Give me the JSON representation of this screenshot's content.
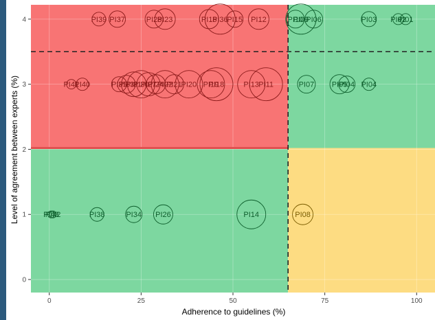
{
  "chart_data": {
    "type": "scatter",
    "title": "",
    "xlabel": "Adherence to guidelines (%)",
    "ylabel": "Level of agreement between experts (%)",
    "xlim": [
      -5,
      105
    ],
    "ylim": [
      -0.2,
      4.22
    ],
    "x_ticks": [
      0,
      25,
      50,
      75,
      100
    ],
    "y_ticks": [
      0,
      1,
      2,
      3,
      4
    ],
    "grid": true,
    "legend": "none",
    "thresholds": {
      "x": 65,
      "y_dashed": 3.5,
      "y_boundary": 2.02
    },
    "quadrant_colors": {
      "red": "#f87474",
      "green": "#7dd7a0",
      "yellow": "#fddc82"
    },
    "label_colors": {
      "red": "#8b1a1a",
      "green": "#0d5e2c",
      "yellow": "#7a5c00"
    },
    "points": [
      {
        "label": "PI39",
        "x": 13.5,
        "y": 4,
        "size": 10
      },
      {
        "label": "PI37",
        "x": 18.5,
        "y": 4,
        "size": 12
      },
      {
        "label": "PI28",
        "x": 28.5,
        "y": 4,
        "size": 13
      },
      {
        "label": "PI23",
        "x": 31.5,
        "y": 4,
        "size": 15
      },
      {
        "label": "PI16",
        "x": 43.5,
        "y": 4,
        "size": 14
      },
      {
        "label": "PI36",
        "x": 46.5,
        "y": 4,
        "size": 22
      },
      {
        "label": "PI15",
        "x": 50.5,
        "y": 4,
        "size": 12
      },
      {
        "label": "PI12",
        "x": 57,
        "y": 4,
        "size": 15
      },
      {
        "label": "PI10",
        "x": 67,
        "y": 4,
        "size": 13
      },
      {
        "label": "PI09",
        "x": 68.5,
        "y": 4,
        "size": 22
      },
      {
        "label": "PI06",
        "x": 72,
        "y": 4,
        "size": 13
      },
      {
        "label": "PI03",
        "x": 87,
        "y": 4,
        "size": 11
      },
      {
        "label": "PI02",
        "x": 95,
        "y": 4,
        "size": 8
      },
      {
        "label": "PI01",
        "x": 97,
        "y": 4,
        "size": 8
      },
      {
        "label": "PI41",
        "x": 6,
        "y": 3,
        "size": 7
      },
      {
        "label": "PI40",
        "x": 9,
        "y": 3,
        "size": 9
      },
      {
        "label": "PI35",
        "x": 19,
        "y": 3,
        "size": 11
      },
      {
        "label": "PI33",
        "x": 21,
        "y": 3,
        "size": 13
      },
      {
        "label": "PI31",
        "x": 23,
        "y": 3,
        "size": 18
      },
      {
        "label": "PI30",
        "x": 25,
        "y": 3,
        "size": 20
      },
      {
        "label": "PI27",
        "x": 27,
        "y": 3,
        "size": 17
      },
      {
        "label": "PI24",
        "x": 29,
        "y": 3,
        "size": 14
      },
      {
        "label": "PI22",
        "x": 31.5,
        "y": 3,
        "size": 20
      },
      {
        "label": "PI21",
        "x": 34,
        "y": 3,
        "size": 14
      },
      {
        "label": "PI20",
        "x": 38,
        "y": 3,
        "size": 20
      },
      {
        "label": "PI19",
        "x": 44,
        "y": 3,
        "size": 20
      },
      {
        "label": "PI18",
        "x": 45.5,
        "y": 3,
        "size": 24
      },
      {
        "label": "PI13",
        "x": 55,
        "y": 3,
        "size": 20
      },
      {
        "label": "PI11",
        "x": 59,
        "y": 3,
        "size": 24
      },
      {
        "label": "PI07",
        "x": 70,
        "y": 3,
        "size": 13
      },
      {
        "label": "PI05",
        "x": 79,
        "y": 3,
        "size": 14
      },
      {
        "label": "PI04",
        "x": 81,
        "y": 3,
        "size": 12
      },
      {
        "label": "PI04",
        "x": 87,
        "y": 3,
        "size": 9
      },
      {
        "label": "PI43",
        "x": 0.5,
        "y": 1,
        "size": 5
      },
      {
        "label": "PI42",
        "x": 1,
        "y": 1,
        "size": 5
      },
      {
        "label": "PI38",
        "x": 13,
        "y": 1,
        "size": 10
      },
      {
        "label": "PI34",
        "x": 23,
        "y": 1,
        "size": 12
      },
      {
        "label": "PI26",
        "x": 31,
        "y": 1,
        "size": 14
      },
      {
        "label": "PI14",
        "x": 55,
        "y": 1,
        "size": 21
      },
      {
        "label": "PI08",
        "x": 69,
        "y": 1,
        "size": 15
      }
    ]
  }
}
